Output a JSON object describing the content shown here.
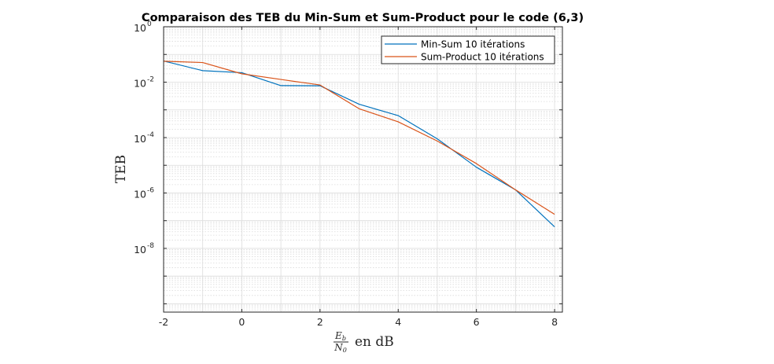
{
  "chart_data": {
    "type": "line",
    "title": "Comparaison des TEB du Min-Sum et Sum-Product pour le code (6,3)",
    "xlabel": {
      "num": "E",
      "num_sub": "b",
      "den": "N",
      "den_sub": "0",
      "suffix": "en dB"
    },
    "ylabel": "TEB",
    "yscale": "log",
    "xlim": [
      -2,
      8.2
    ],
    "ylim_exponent": [
      -10.3,
      0
    ],
    "x_ticks": [
      -2,
      0,
      2,
      4,
      6,
      8
    ],
    "x_tick_labels": [
      "-2",
      "0",
      "2",
      "4",
      "6",
      "8"
    ],
    "y_ticks_exponent": [
      0,
      -2,
      -4,
      -6,
      -8
    ],
    "y_tick_labels": [
      {
        "base": "10",
        "exp": "0"
      },
      {
        "base": "10",
        "exp": "-2"
      },
      {
        "base": "10",
        "exp": "-4"
      },
      {
        "base": "10",
        "exp": "-6"
      },
      {
        "base": "10",
        "exp": "-8"
      }
    ],
    "grid": true,
    "legend_position": "top-right",
    "x": [
      -2,
      -1,
      0,
      1,
      2,
      3,
      4,
      5,
      6,
      7,
      8
    ],
    "series": [
      {
        "name": "Min-Sum 10 itérations",
        "color": "#0072bd",
        "values": [
          0.058,
          0.026,
          0.022,
          0.0075,
          0.0074,
          0.0016,
          0.00062,
          9e-05,
          8.5e-06,
          1.3e-06,
          6e-08
        ]
      },
      {
        "name": "Sum-Product 10 itérations",
        "color": "#d95319",
        "values": [
          0.057,
          0.051,
          0.02,
          0.0125,
          0.0079,
          0.0011,
          0.00037,
          7.5e-05,
          1.15e-05,
          1.3e-06,
          1.7e-07
        ]
      }
    ]
  }
}
